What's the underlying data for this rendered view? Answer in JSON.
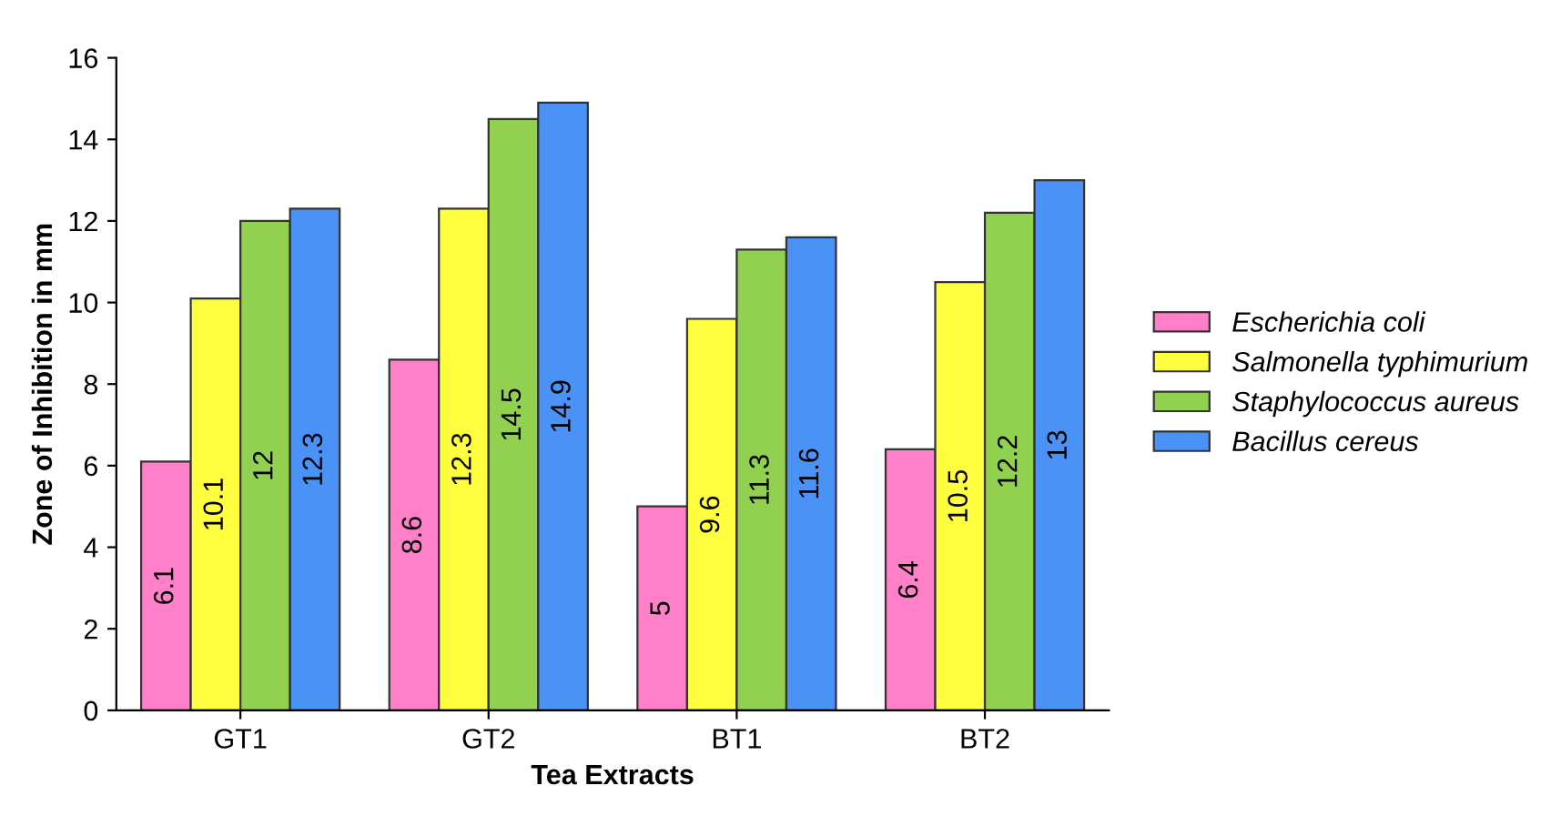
{
  "chart_data": {
    "type": "bar",
    "xlabel": "Tea Extracts",
    "ylabel": "Zone of Inhibition in mm",
    "categories": [
      "GT1",
      "GT2",
      "BT1",
      "BT2"
    ],
    "series": [
      {
        "name": "Escherichia coli",
        "color": "#ff80c8",
        "values": [
          6.1,
          8.6,
          5,
          6.4
        ]
      },
      {
        "name": "Salmonella typhimurium",
        "color": "#ffff40",
        "values": [
          10.1,
          12.3,
          9.6,
          10.5
        ]
      },
      {
        "name": "Staphylococcus aureus",
        "color": "#92d050",
        "values": [
          12,
          14.5,
          11.3,
          12.2
        ]
      },
      {
        "name": "Bacillus cereus",
        "color": "#4a92f5",
        "values": [
          12.3,
          14.9,
          11.6,
          13
        ]
      }
    ],
    "ylim": [
      0,
      16
    ],
    "yticks": [
      0,
      2,
      4,
      6,
      8,
      10,
      12,
      14,
      16
    ],
    "grid": false,
    "legend": "right",
    "data_labels": true
  }
}
